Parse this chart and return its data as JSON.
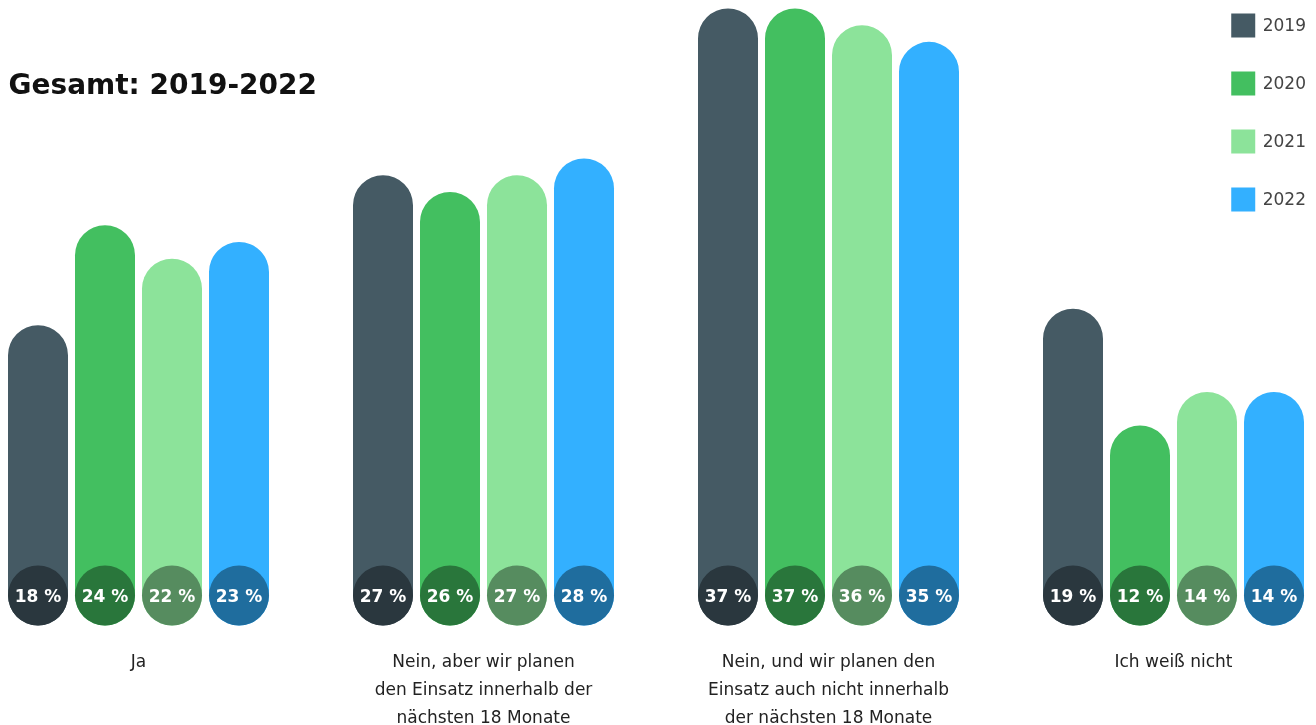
{
  "chart_data": {
    "type": "bar",
    "title": "Gesamt: 2019-2022",
    "categories": [
      "Ja",
      "Nein, aber wir planen\nden Einsatz innerhalb der\nnächsten 18 Monate",
      "Nein, und wir planen den\nEinsatz auch nicht innerhalb\nder nächsten 18 Monate",
      "Ich weiß nicht"
    ],
    "series": [
      {
        "name": "2019",
        "color": "#455a64",
        "values": [
          18,
          27,
          37,
          19
        ],
        "value_labels": [
          "18 %",
          "27 %",
          "37 %",
          "19 %"
        ]
      },
      {
        "name": "2020",
        "color": "#43bf60",
        "values": [
          24,
          26,
          37,
          12
        ],
        "value_labels": [
          "24 %",
          "26 %",
          "37 %",
          "12 %"
        ]
      },
      {
        "name": "2021",
        "color": "#8ce39a",
        "values": [
          22,
          27,
          36,
          14
        ],
        "value_labels": [
          "22 %",
          "27 %",
          "36 %",
          "14 %"
        ]
      },
      {
        "name": "2022",
        "color": "#33b0ff",
        "values": [
          23,
          28,
          35,
          14
        ],
        "value_labels": [
          "23 %",
          "28 %",
          "35 %",
          "14 %"
        ]
      }
    ],
    "legend": "top right",
    "grid": false
  }
}
